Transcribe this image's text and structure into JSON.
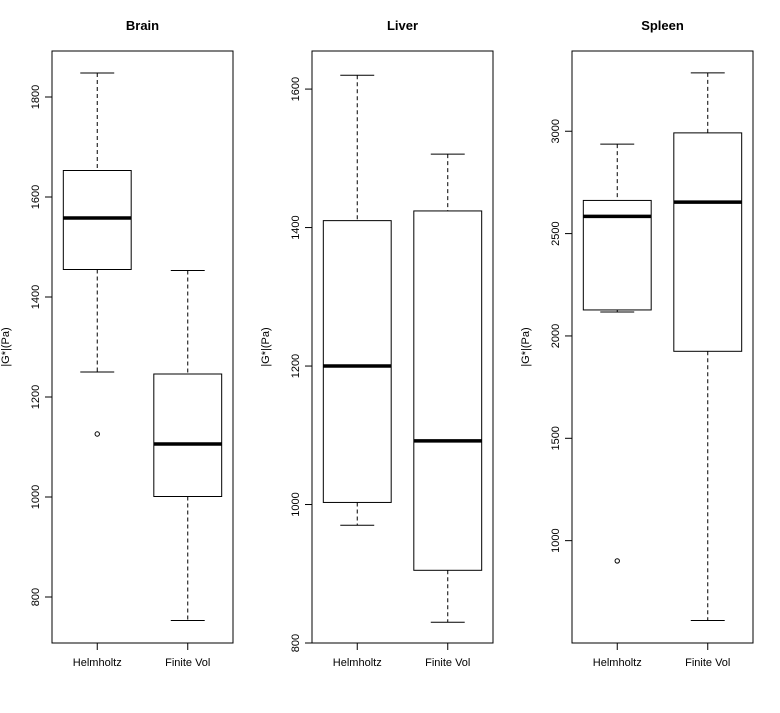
{
  "chart_data": [
    {
      "type": "box",
      "title": "Brain",
      "ylabel": "|G*|(Pa)",
      "categories": [
        "Helmholtz",
        "Finite Vol"
      ],
      "yticks": [
        800,
        1000,
        1200,
        1400,
        1600,
        1800
      ],
      "ylim": [
        708,
        1892
      ],
      "boxes": [
        {
          "whisker_low": 1250,
          "q1": 1455,
          "median": 1558,
          "q3": 1653,
          "whisker_high": 1848,
          "outliers": [
            1126
          ]
        },
        {
          "whisker_low": 753,
          "q1": 1001,
          "median": 1106,
          "q3": 1246,
          "whisker_high": 1453,
          "outliers": []
        }
      ]
    },
    {
      "type": "box",
      "title": "Liver",
      "ylabel": "|G*|(Pa)",
      "categories": [
        "Helmholtz",
        "Finite Vol"
      ],
      "yticks": [
        800,
        1000,
        1200,
        1400,
        1600
      ],
      "ylim": [
        800,
        1655
      ],
      "boxes": [
        {
          "whisker_low": 970,
          "q1": 1003,
          "median": 1200,
          "q3": 1410,
          "whisker_high": 1620,
          "outliers": []
        },
        {
          "whisker_low": 830,
          "q1": 905,
          "median": 1092,
          "q3": 1424,
          "whisker_high": 1506,
          "outliers": []
        }
      ]
    },
    {
      "type": "box",
      "title": "Spleen",
      "ylabel": "|G*|(Pa)",
      "categories": [
        "Helmholtz",
        "Finite Vol"
      ],
      "yticks": [
        1000,
        1500,
        2000,
        2500,
        3000
      ],
      "ylim": [
        500,
        3392
      ],
      "boxes": [
        {
          "whisker_low": 2117,
          "q1": 2127,
          "median": 2584,
          "q3": 2662,
          "whisker_high": 2937,
          "outliers": [
            901
          ]
        },
        {
          "whisker_low": 610,
          "q1": 1925,
          "median": 2654,
          "q3": 2992,
          "whisker_high": 3285,
          "outliers": []
        }
      ]
    }
  ]
}
